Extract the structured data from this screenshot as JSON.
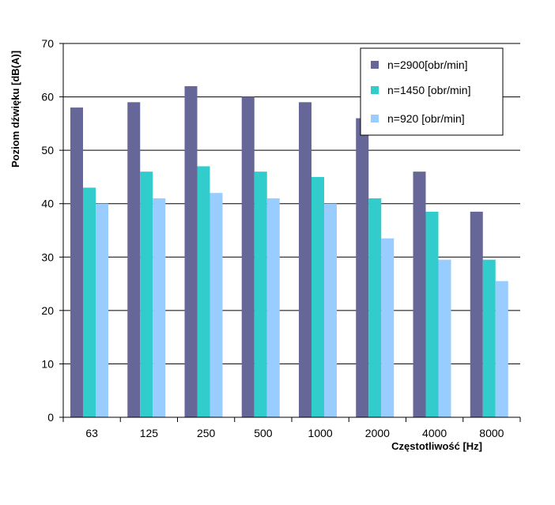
{
  "chart_data": {
    "type": "bar",
    "title": "",
    "xlabel": "Częstotliwość [Hz]",
    "ylabel": "Poziom dźwięku [dB(A)]",
    "ylim": [
      0,
      70
    ],
    "yticks": [
      0,
      10,
      20,
      30,
      40,
      50,
      60,
      70
    ],
    "grid": true,
    "legend_position": "top-right",
    "categories": [
      "63",
      "125",
      "250",
      "500",
      "1000",
      "2000",
      "4000",
      "8000"
    ],
    "series": [
      {
        "name": "n=2900[obr/min]",
        "color": "#666699",
        "values": [
          58,
          59,
          62,
          60,
          59,
          56,
          46,
          38.5
        ]
      },
      {
        "name": "n=1450  [obr/min]",
        "color": "#33cccc",
        "values": [
          43,
          46,
          47,
          46,
          45,
          41,
          38.5,
          29.5
        ]
      },
      {
        "name": "n=920  [obr/min]",
        "color": "#99ccff",
        "values": [
          40,
          41,
          42,
          41,
          40,
          33.5,
          29.5,
          25.5
        ]
      }
    ]
  }
}
